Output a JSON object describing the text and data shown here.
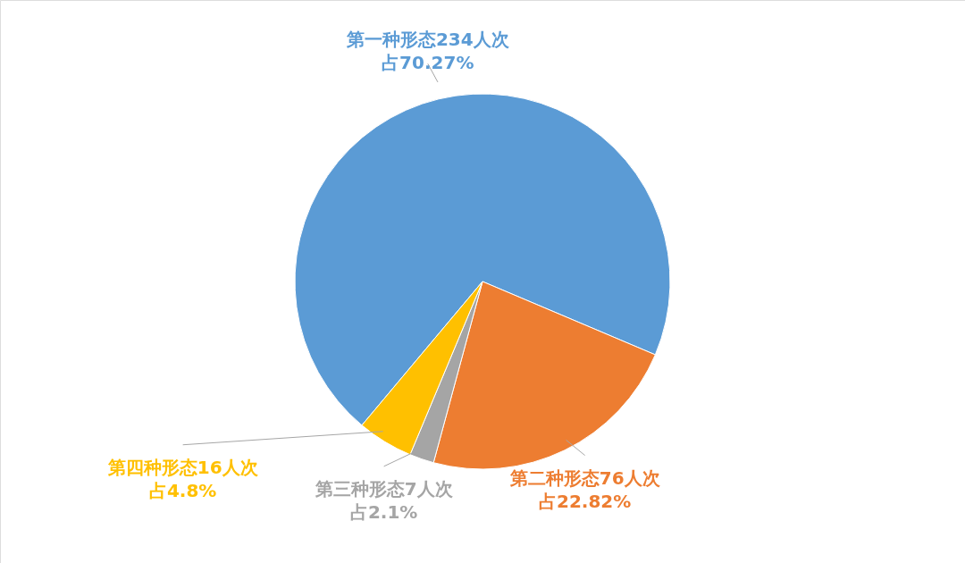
{
  "chart_data": {
    "type": "pie",
    "categories": [
      "第一种形态234人次",
      "第二种形态76人次",
      "第三种形态7人次",
      "第四种形态16人次"
    ],
    "values": [
      234,
      76,
      7,
      16
    ],
    "value_labels": [
      "占70.27%",
      "占22.82%",
      "占2.1%",
      "占4.8%"
    ],
    "colors": [
      "#5b9bd5",
      "#ed7d31",
      "#a5a5a5",
      "#ffc000"
    ]
  }
}
